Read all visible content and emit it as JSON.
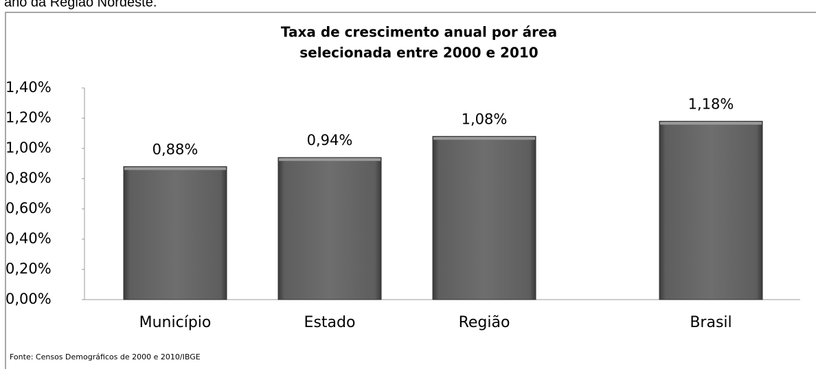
{
  "header_text": "ano da Região Nordeste.",
  "chart_data": {
    "type": "bar",
    "title": [
      "Taxa de crescimento anual por área",
      "selecionada entre 2000 e 2010"
    ],
    "categories": [
      "Município",
      "Estado",
      "Região",
      "Brasil"
    ],
    "values": [
      0.88,
      0.94,
      1.08,
      1.18
    ],
    "value_labels": [
      "0,88%",
      "0,94%",
      "1,08%",
      "1,18%"
    ],
    "color": "#6a6a6a",
    "ylim": [
      0,
      1.4
    ],
    "yticks": [
      {
        "value": 0,
        "label": "0,00%"
      },
      {
        "value": 0.2,
        "label": "0,20%"
      },
      {
        "value": 0.4,
        "label": "0,40%"
      },
      {
        "value": 0.6,
        "label": "0,60%"
      },
      {
        "value": 0.8,
        "label": "0,80%"
      },
      {
        "value": 1.0,
        "label": "1,00%"
      },
      {
        "value": 1.2,
        "label": "1,20%"
      },
      {
        "value": 1.4,
        "label": "1,40%"
      }
    ],
    "grid": false,
    "source": "Fonte: Censos Demográficos de 2000 e 2010/IBGE"
  }
}
